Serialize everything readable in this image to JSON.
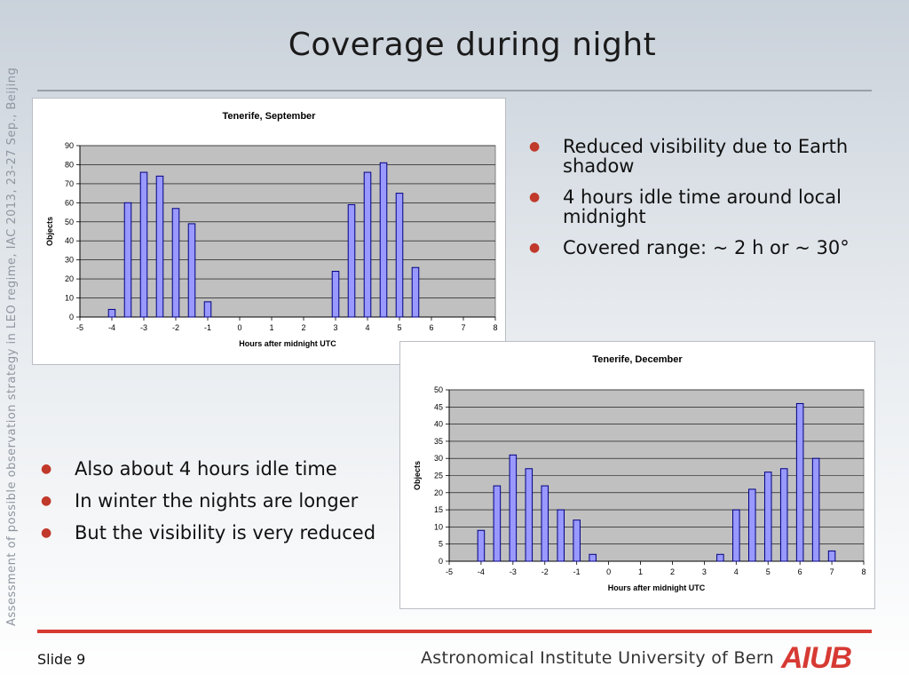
{
  "side_text": "Assessment of possible observation strategy in LEO regime, IAC 2013, 23-27 Sep., Beijing",
  "title": "Coverage during night",
  "bullets_right": [
    "Reduced visibility due to Earth shadow",
    "4 hours idle time around local midnight",
    "Covered range: ~ 2 h or ~ 30°"
  ],
  "bullets_left": [
    "Also about 4 hours idle time",
    "In winter the nights are longer",
    "But the visibility is very reduced"
  ],
  "footer": {
    "slide": "Slide 9",
    "institute": "Astronomical Institute University of Bern",
    "logo": "AIUB"
  },
  "colors": {
    "accent": "#d63a33",
    "bar_fill": "#9999ff",
    "plot_bg": "#c0c0c0"
  },
  "chart_data": [
    {
      "type": "bar",
      "title": "Tenerife, September",
      "xlabel": "Hours after midnight UTC",
      "ylabel": "Objects",
      "ylim": [
        0,
        90
      ],
      "yticks": [
        0,
        10,
        20,
        30,
        40,
        50,
        60,
        70,
        80,
        90
      ],
      "xticks": [
        "-5",
        "-4",
        "-3",
        "-2",
        "-1",
        "0",
        "1",
        "2",
        "3",
        "4",
        "5",
        "6",
        "7",
        "8"
      ],
      "grid": true,
      "x": [
        -4.5,
        -4,
        -3.5,
        -3,
        -2.5,
        -2,
        -1.5,
        -1,
        -0.5,
        0,
        0.5,
        1,
        1.5,
        2,
        2.5,
        3,
        3.5,
        4,
        4.5,
        5,
        5.5,
        6,
        6.5,
        7,
        7.5
      ],
      "values": [
        0,
        4,
        60,
        76,
        74,
        57,
        49,
        8,
        0,
        0,
        0,
        0,
        0,
        0,
        0,
        24,
        59,
        76,
        81,
        65,
        26,
        0,
        0,
        0,
        0
      ]
    },
    {
      "type": "bar",
      "title": "Tenerife, December",
      "xlabel": "Hours after midnight UTC",
      "ylabel": "Objects",
      "ylim": [
        0,
        50
      ],
      "yticks": [
        0,
        5,
        10,
        15,
        20,
        25,
        30,
        35,
        40,
        45,
        50
      ],
      "xticks": [
        "-5",
        "-4",
        "-3",
        "-2",
        "-1",
        "0",
        "1",
        "2",
        "3",
        "4",
        "5",
        "6",
        "7",
        "8"
      ],
      "grid": true,
      "x": [
        -4.5,
        -4,
        -3.5,
        -3,
        -2.5,
        -2,
        -1.5,
        -1,
        -0.5,
        0,
        0.5,
        1,
        1.5,
        2,
        2.5,
        3,
        3.5,
        4,
        4.5,
        5,
        5.5,
        6,
        6.5,
        7,
        7.5
      ],
      "values": [
        0,
        9,
        22,
        31,
        27,
        22,
        15,
        12,
        2,
        0,
        0,
        0,
        0,
        0,
        0,
        0,
        2,
        15,
        21,
        26,
        27,
        46,
        30,
        3,
        0
      ]
    }
  ]
}
